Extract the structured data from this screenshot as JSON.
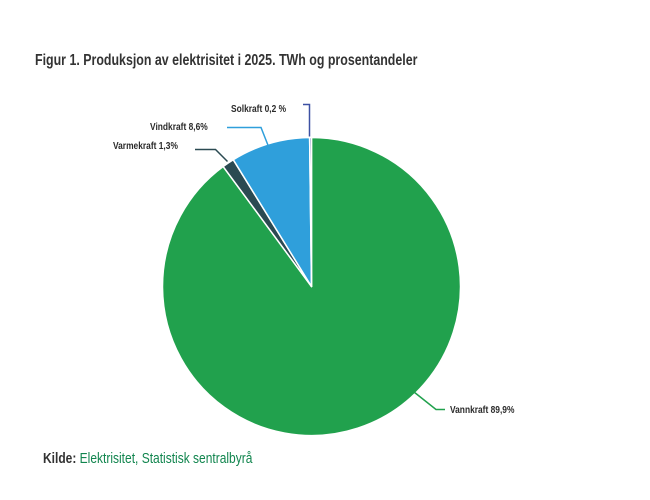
{
  "figure": {
    "title": "Figur 1. Produksjon av elektrisitet i 2025. TWh og prosentandeler"
  },
  "chart_data": {
    "type": "pie",
    "title": "Produksjon av elektrisitet i 2025. TWh og prosentandeler",
    "unit": "percent",
    "start_angle_deg": 0,
    "direction": "clockwise",
    "legend": "callout-labels",
    "slice_border_color": "#FFFFFF",
    "slices": [
      {
        "label": "Vannkraft",
        "value": 89.9,
        "display": "Vannkraft 89,9%",
        "color": "#21A14D"
      },
      {
        "label": "Varmekraft",
        "value": 1.3,
        "display": "Varmekraft 1,3%",
        "color": "#2B4A52"
      },
      {
        "label": "Vindkraft",
        "value": 8.6,
        "display": "Vindkraft 8,6%",
        "color": "#2F9FDB"
      },
      {
        "label": "Solkraft",
        "value": 0.2,
        "display": "Solkraft 0,2 %",
        "color": "#3D51A3"
      }
    ]
  },
  "source": {
    "prefix": "Kilde:",
    "link": "Elektrisitet, Statistisk sentralbyrå",
    "link_color": "#11854E"
  }
}
